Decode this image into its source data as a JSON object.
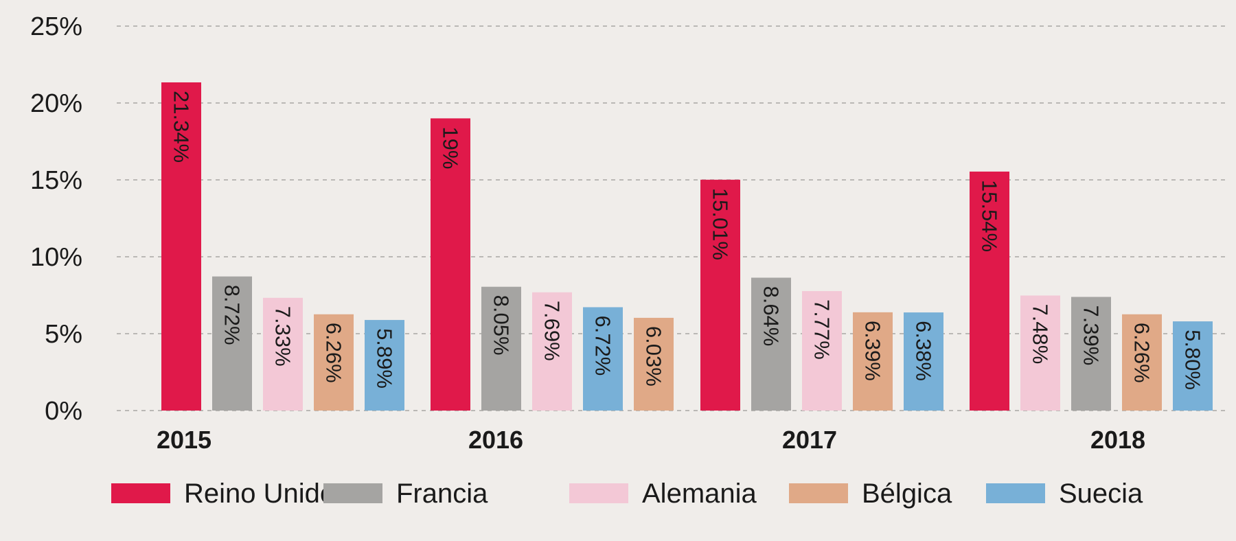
{
  "chart_data": {
    "type": "bar",
    "categories": [
      "2015",
      "2016",
      "2017",
      "2018"
    ],
    "yticks": [
      "0%",
      "5%",
      "10%",
      "15%",
      "20%",
      "25%"
    ],
    "ylim": [
      0,
      25
    ],
    "grid": true,
    "legend_position": "bottom",
    "legend": [
      {
        "name": "Reino Unido",
        "color": "#e0194a"
      },
      {
        "name": "Francia",
        "color": "#a5a4a2"
      },
      {
        "name": "Alemania",
        "color": "#f3c8d6"
      },
      {
        "name": "Bélgica",
        "color": "#e0a987"
      },
      {
        "name": "Suecia",
        "color": "#78b0d7"
      }
    ],
    "groups": [
      {
        "year": "2015",
        "bars": [
          {
            "series": "Reino Unido",
            "value": 21.34,
            "label": "21.34%"
          },
          {
            "series": "Francia",
            "value": 8.72,
            "label": "8.72%"
          },
          {
            "series": "Alemania",
            "value": 7.33,
            "label": "7.33%"
          },
          {
            "series": "Bélgica",
            "value": 6.26,
            "label": "6.26%"
          },
          {
            "series": "Suecia",
            "value": 5.89,
            "label": "5.89%"
          }
        ]
      },
      {
        "year": "2016",
        "bars": [
          {
            "series": "Reino Unido",
            "value": 19,
            "label": "19%"
          },
          {
            "series": "Francia",
            "value": 8.05,
            "label": "8.05%"
          },
          {
            "series": "Alemania",
            "value": 7.69,
            "label": "7.69%"
          },
          {
            "series": "Suecia",
            "value": 6.72,
            "label": "6.72%"
          },
          {
            "series": "Bélgica",
            "value": 6.03,
            "label": "6.03%"
          }
        ]
      },
      {
        "year": "2017",
        "bars": [
          {
            "series": "Reino Unido",
            "value": 15.01,
            "label": "15.01%"
          },
          {
            "series": "Francia",
            "value": 8.64,
            "label": "8.64%"
          },
          {
            "series": "Alemania",
            "value": 7.77,
            "label": "7.77%"
          },
          {
            "series": "Bélgica",
            "value": 6.39,
            "label": "6.39%"
          },
          {
            "series": "Suecia",
            "value": 6.38,
            "label": "6.38%"
          }
        ]
      },
      {
        "year": "2018",
        "bars": [
          {
            "series": "Reino Unido",
            "value": 15.54,
            "label": "15.54%"
          },
          {
            "series": "Alemania",
            "value": 7.48,
            "label": "7.48%"
          },
          {
            "series": "Francia",
            "value": 7.39,
            "label": "7.39%"
          },
          {
            "series": "Bélgica",
            "value": 6.26,
            "label": "6.26%"
          },
          {
            "series": "Suecia",
            "value": 5.8,
            "label": "5.80%"
          }
        ]
      }
    ]
  }
}
